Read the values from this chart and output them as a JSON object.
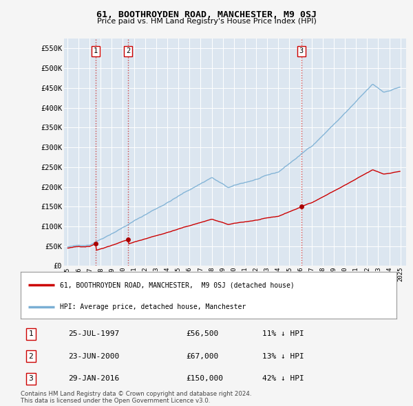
{
  "title": "61, BOOTHROYDEN ROAD, MANCHESTER, M9 0SJ",
  "subtitle": "Price paid vs. HM Land Registry's House Price Index (HPI)",
  "ylim": [
    0,
    575000
  ],
  "yticks": [
    0,
    50000,
    100000,
    150000,
    200000,
    250000,
    300000,
    350000,
    400000,
    450000,
    500000,
    550000
  ],
  "ytick_labels": [
    "£0",
    "£50K",
    "£100K",
    "£150K",
    "£200K",
    "£250K",
    "£300K",
    "£350K",
    "£400K",
    "£450K",
    "£500K",
    "£550K"
  ],
  "sale_dates_decimal": [
    1997.558,
    2000.472,
    2016.075
  ],
  "sale_prices": [
    56500,
    67000,
    150000
  ],
  "sale_labels": [
    "1",
    "2",
    "3"
  ],
  "red_line_color": "#cc0000",
  "blue_line_color": "#7aafd4",
  "legend_label_red": "61, BOOTHROYDEN ROAD, MANCHESTER,  M9 0SJ (detached house)",
  "legend_label_blue": "HPI: Average price, detached house, Manchester",
  "table_rows": [
    [
      "1",
      "25-JUL-1997",
      "£56,500",
      "11% ↓ HPI"
    ],
    [
      "2",
      "23-JUN-2000",
      "£67,000",
      "13% ↓ HPI"
    ],
    [
      "3",
      "29-JAN-2016",
      "£150,000",
      "42% ↓ HPI"
    ]
  ],
  "footer": "Contains HM Land Registry data © Crown copyright and database right 2024.\nThis data is licensed under the Open Government Licence v3.0.",
  "bg_color": "#f2f2f2",
  "plot_bg_color": "#dce6f0"
}
